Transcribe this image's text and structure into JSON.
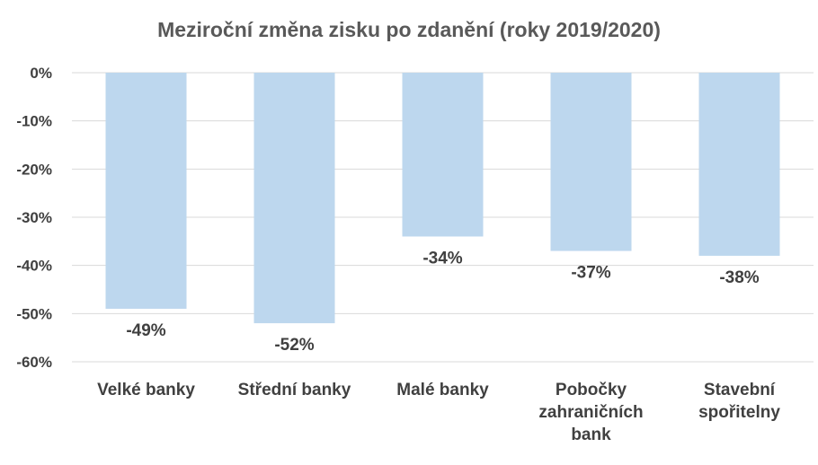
{
  "chart_data": {
    "type": "bar",
    "title": "Meziroční změna zisku po zdanění (roky 2019/2020)",
    "categories": [
      [
        "Velké banky"
      ],
      [
        "Střední banky"
      ],
      [
        "Malé banky"
      ],
      [
        "Pobočky",
        "zahraničních",
        "bank"
      ],
      [
        "Stavební",
        "spořitelny"
      ]
    ],
    "values": [
      -49,
      -52,
      -34,
      -37,
      -38
    ],
    "data_labels": [
      "-49%",
      "-52%",
      "-34%",
      "-37%",
      "-38%"
    ],
    "ytick_labels": [
      "0%",
      "-10%",
      "-20%",
      "-30%",
      "-40%",
      "-50%",
      "-60%"
    ],
    "ylim": [
      -60,
      0
    ],
    "ytick_step": 10,
    "grid": true,
    "bar_color": "#BDD7EE",
    "grid_color": "#D9D9D9"
  }
}
